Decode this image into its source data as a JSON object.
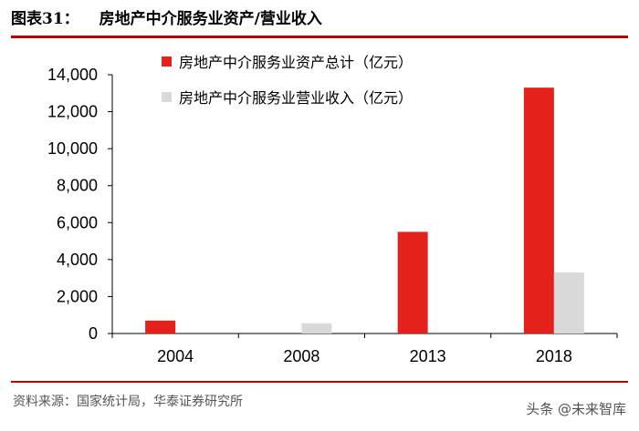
{
  "header": {
    "figure_number": "图表31：",
    "title": "房地产中介服务业资产/营业收入"
  },
  "footer": {
    "source": "资料来源：国家统计局，华泰证券研究所",
    "watermark": "头条 @未来智库"
  },
  "colors": {
    "assets": "#e5211c",
    "revenue": "#d9d9d9",
    "rule": "#c00000"
  },
  "chart_data": {
    "type": "bar",
    "title": "",
    "xlabel": "",
    "ylabel": "",
    "categories": [
      "2004",
      "2008",
      "2013",
      "2018"
    ],
    "series": [
      {
        "name": "房地产中介服务业资产总计（亿元）",
        "values": [
          700,
          null,
          5500,
          13300
        ]
      },
      {
        "name": "房地产中介服务业营业收入（亿元）",
        "values": [
          null,
          550,
          null,
          3300
        ]
      }
    ],
    "ylim": [
      0,
      14000
    ],
    "yticks": [
      0,
      2000,
      4000,
      6000,
      8000,
      10000,
      12000,
      14000
    ],
    "ytick_labels": [
      "0",
      "2,000",
      "4,000",
      "6,000",
      "8,000",
      "10,000",
      "12,000",
      "14,000"
    ],
    "grid": false,
    "legend_position": "top-center"
  }
}
